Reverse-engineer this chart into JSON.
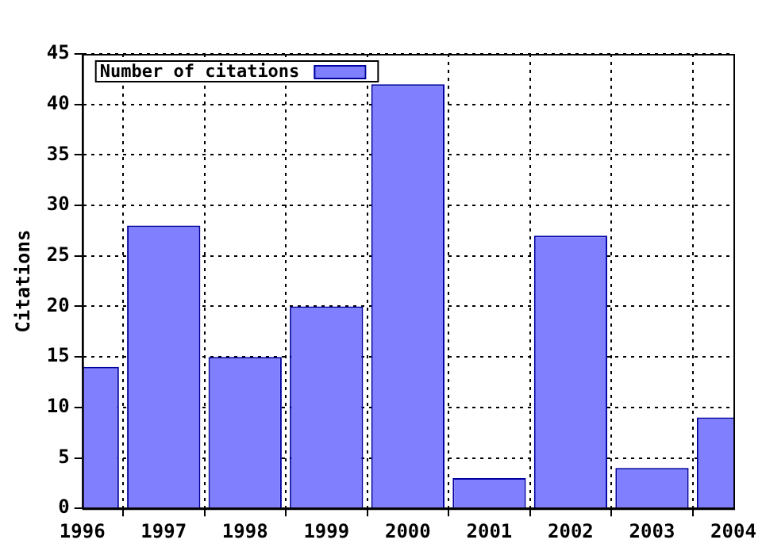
{
  "chart_data": {
    "type": "bar",
    "ylabel": "Citations",
    "x": [
      1996,
      1997,
      1998,
      1999,
      2000,
      2001,
      2002,
      2003,
      2004
    ],
    "series": [
      {
        "name": "Number of citations",
        "color": "#8080ff",
        "values": [
          14,
          28,
          15,
          20,
          42,
          3,
          27,
          4,
          9
        ]
      }
    ],
    "xlim": [
      1996,
      2004
    ],
    "xticks": [
      1996,
      1997,
      1998,
      1999,
      2000,
      2001,
      2002,
      2003,
      2004
    ],
    "ylim": [
      0,
      45
    ],
    "yticks": [
      0,
      5,
      10,
      15,
      20,
      25,
      30,
      35,
      40,
      45
    ],
    "grid": true,
    "legend": "top left"
  }
}
